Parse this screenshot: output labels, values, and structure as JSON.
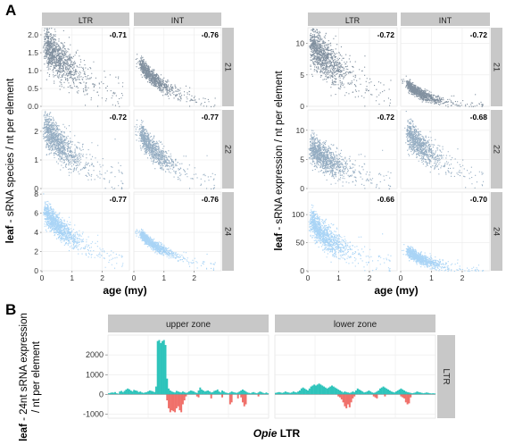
{
  "figure": {
    "panel_a_label": "A",
    "panel_b_label": "B"
  },
  "colors": {
    "strip_bg": "#c8c8c8",
    "panel_bg": "#ffffff",
    "grid": "#ebebeb",
    "dot_21": "#1b3752",
    "dot_22": "#3e6a90",
    "dot_24": "#62b0ee",
    "pos_bars": "#2ec4bb",
    "neg_bars": "#f0706a"
  },
  "chart_data": [
    {
      "type": "scatter",
      "id": "A-left",
      "ylabel_bold": "leaf",
      "ylabel_rest": " - sRNA species / nt per element",
      "xlabel": "age (my)",
      "columns": [
        "LTR",
        "INT"
      ],
      "rows": [
        "21",
        "22",
        "24"
      ],
      "xlim": [
        0,
        2.9
      ],
      "xticks": [
        0,
        1,
        2
      ],
      "row_ranges": {
        "21": {
          "ylim": [
            0,
            2.2
          ],
          "yticks": [
            "0.0",
            "0.5",
            "1.0",
            "1.5",
            "2.0"
          ],
          "ytick_vals": [
            0,
            0.5,
            1.0,
            1.5,
            2.0
          ]
        },
        "22": {
          "ylim": [
            0,
            2.75
          ],
          "yticks": [
            "0",
            "1",
            "2"
          ],
          "ytick_vals": [
            0,
            1,
            2
          ]
        },
        "24": {
          "ylim": [
            0,
            8.2
          ],
          "yticks": [
            "0",
            "2",
            "4",
            "6",
            "8"
          ],
          "ytick_vals": [
            0,
            2,
            4,
            6,
            8
          ]
        }
      },
      "correlations": {
        "21": [
          "-0.71",
          "-0.76"
        ],
        "22": [
          "-0.72",
          "-0.77"
        ],
        "24": [
          "-0.77",
          "-0.76"
        ]
      },
      "trend_params": {
        "21": [
          {
            "a": 1.85,
            "b": 1.6,
            "s": 0.28
          },
          {
            "a": 1.45,
            "b": 1.05,
            "s": 0.1
          }
        ],
        "22": [
          {
            "a": 2.3,
            "b": 1.5,
            "s": 0.3
          },
          {
            "a": 2.3,
            "b": 1.2,
            "s": 0.2
          }
        ],
        "24": [
          {
            "a": 6.5,
            "b": 1.6,
            "s": 0.6
          },
          {
            "a": 4.5,
            "b": 1.3,
            "s": 0.25
          }
        ]
      }
    },
    {
      "type": "scatter",
      "id": "A-right",
      "ylabel_bold": "leaf",
      "ylabel_rest": " - sRNA expression / nt per element",
      "xlabel": "age (my)",
      "columns": [
        "LTR",
        "INT"
      ],
      "rows": [
        "21",
        "22",
        "24"
      ],
      "xlim": [
        0,
        2.9
      ],
      "xticks": [
        0,
        1,
        2
      ],
      "row_ranges": {
        "21": {
          "ylim": [
            0,
            12.5
          ],
          "yticks": [
            "0",
            "5",
            "10"
          ],
          "ytick_vals": [
            0,
            5,
            10
          ]
        },
        "22": {
          "ylim": [
            0,
            13.5
          ],
          "yticks": [
            "0",
            "5",
            "10"
          ],
          "ytick_vals": [
            0,
            5,
            10
          ]
        },
        "24": {
          "ylim": [
            0,
            140
          ],
          "yticks": [
            "0",
            "50",
            "100"
          ],
          "ytick_vals": [
            0,
            50,
            100
          ]
        }
      },
      "correlations": {
        "21": [
          "-0.72",
          "-0.72"
        ],
        "22": [
          "-0.72",
          "-0.68"
        ],
        "24": [
          "-0.66",
          "-0.70"
        ]
      },
      "trend_params": {
        "21": [
          {
            "a": 10.5,
            "b": 1.7,
            "s": 1.6
          },
          {
            "a": 4.6,
            "b": 0.8,
            "s": 0.4
          }
        ],
        "22": [
          {
            "a": 7.5,
            "b": 1.5,
            "s": 1.2
          },
          {
            "a": 11,
            "b": 1.6,
            "s": 1.2
          }
        ],
        "24": [
          {
            "a": 95,
            "b": 1.3,
            "s": 12
          },
          {
            "a": 45,
            "b": 0.9,
            "s": 5
          }
        ]
      }
    },
    {
      "type": "bar",
      "id": "B",
      "ylabel_bold": "leaf",
      "ylabel_rest": " - 24nt sRNA expression",
      "ylabel_line2": "/ nt per element",
      "xlabel_italic": "Opie",
      "xlabel_rest": " LTR",
      "facets": [
        "upper zone",
        "lower zone"
      ],
      "row_strip": "LTR",
      "ylim": [
        -1200,
        3000
      ],
      "yticks": [
        "-1000",
        "0",
        "1000",
        "2000"
      ],
      "ytick_vals": [
        -1000,
        0,
        1000,
        2000
      ],
      "positions": 100,
      "upper_zone": {
        "positive": [
          60,
          80,
          100,
          90,
          120,
          60,
          40,
          150,
          180,
          120,
          180,
          250,
          300,
          260,
          200,
          150,
          230,
          200,
          180,
          120,
          150,
          100,
          80,
          100,
          120,
          160,
          200,
          180,
          150,
          120,
          400,
          2700,
          2750,
          2600,
          2700,
          2750,
          2500,
          800,
          300,
          200,
          150,
          120,
          100,
          180,
          150,
          120,
          100,
          150,
          120,
          80,
          100,
          150,
          200,
          180,
          150,
          100,
          80,
          200,
          350,
          250,
          200,
          150,
          180,
          200,
          150,
          100,
          120,
          180,
          200,
          250,
          150,
          100,
          200,
          150,
          100,
          80,
          60,
          100,
          150,
          120,
          100,
          80,
          100,
          150,
          200,
          250,
          200,
          150,
          100,
          80,
          60,
          100,
          120,
          80,
          60,
          100,
          150,
          120,
          80,
          60,
          100,
          60
        ],
        "negative": [
          0,
          0,
          0,
          0,
          0,
          0,
          0,
          0,
          0,
          0,
          0,
          0,
          0,
          0,
          0,
          0,
          0,
          0,
          0,
          0,
          0,
          0,
          0,
          0,
          0,
          0,
          0,
          0,
          0,
          0,
          0,
          0,
          0,
          0,
          0,
          0,
          0,
          -300,
          -700,
          -900,
          -800,
          -850,
          -900,
          -700,
          -600,
          -800,
          -900,
          -500,
          -300,
          -100,
          0,
          0,
          0,
          0,
          0,
          0,
          -100,
          -150,
          0,
          0,
          0,
          0,
          0,
          0,
          0,
          -200,
          0,
          0,
          0,
          0,
          0,
          0,
          -150,
          0,
          0,
          0,
          0,
          -500,
          -400,
          0,
          0,
          0,
          -200,
          0,
          -150,
          -400,
          -600,
          -500,
          0,
          0,
          0,
          0,
          0,
          0,
          0,
          -100,
          0,
          0,
          0,
          0
        ]
      },
      "lower_zone": {
        "positive": [
          80,
          100,
          120,
          100,
          80,
          100,
          150,
          120,
          100,
          80,
          100,
          150,
          120,
          100,
          150,
          200,
          300,
          350,
          300,
          250,
          200,
          300,
          400,
          450,
          500,
          450,
          500,
          550,
          500,
          450,
          400,
          350,
          300,
          350,
          400,
          450,
          400,
          350,
          300,
          250,
          200,
          150,
          100,
          150,
          120,
          100,
          80,
          100,
          150,
          120,
          200,
          300,
          250,
          200,
          150,
          100,
          120,
          150,
          200,
          150,
          100,
          80,
          100,
          150,
          200,
          300,
          350,
          400,
          350,
          300,
          250,
          200,
          150,
          120,
          100,
          150,
          200,
          250,
          300,
          250,
          200,
          150,
          120,
          100,
          80,
          60,
          80,
          100,
          150,
          120,
          100,
          80,
          60,
          80,
          100,
          80,
          60,
          50,
          60,
          50
        ],
        "negative": [
          0,
          0,
          0,
          0,
          0,
          0,
          0,
          0,
          0,
          0,
          0,
          0,
          0,
          0,
          0,
          0,
          0,
          0,
          0,
          0,
          0,
          0,
          0,
          0,
          0,
          0,
          0,
          0,
          0,
          0,
          0,
          0,
          0,
          0,
          0,
          0,
          0,
          0,
          0,
          -100,
          -150,
          -250,
          -400,
          -600,
          -700,
          -500,
          -650,
          -400,
          -200,
          -100,
          0,
          0,
          0,
          0,
          0,
          0,
          0,
          0,
          0,
          0,
          0,
          -100,
          -150,
          -200,
          0,
          0,
          0,
          0,
          -100,
          0,
          0,
          0,
          0,
          0,
          0,
          0,
          0,
          0,
          -100,
          -150,
          -200,
          -400,
          -500,
          -450,
          -150,
          0,
          0,
          0,
          0,
          0,
          0,
          0,
          0,
          0,
          0,
          0,
          0,
          0,
          0,
          0
        ]
      }
    }
  ]
}
